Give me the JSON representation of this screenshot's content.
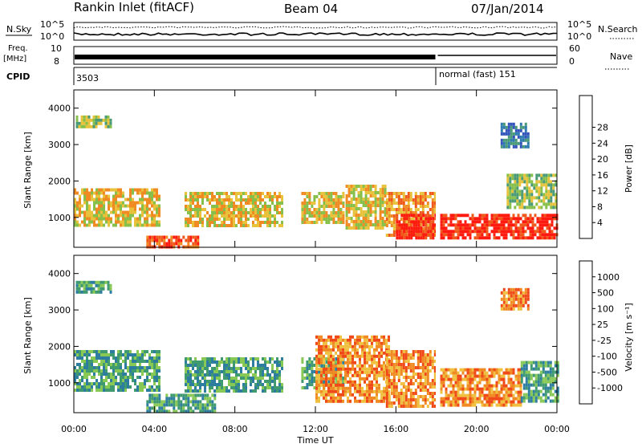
{
  "header": {
    "station": "Rankin Inlet (fitACF)",
    "beam": "Beam 04",
    "date": "07/Jan/2014"
  },
  "params": {
    "nsky_label": "N.Sky",
    "nsearch_label": "N.Search",
    "log_ticks": [
      "10^5",
      "10^0"
    ],
    "freq_label": "Freq.",
    "freq_unit": "[MHz]",
    "freq_ticks": [
      "10",
      "8"
    ],
    "nave_label": "Nave",
    "nave_ticks": [
      "60",
      "0"
    ],
    "cpid_label": "CPID",
    "cpid_segments": [
      "3503",
      "normal (fast) 151"
    ]
  },
  "chart_data": [
    {
      "type": "heatmap",
      "title": "Power",
      "ylabel": "Slant Range [km]",
      "yticks": [
        1000,
        2000,
        3000,
        4000
      ],
      "ylim": [
        180,
        4500
      ],
      "xticks": [
        "00:00",
        "04:00",
        "08:00",
        "12:00",
        "16:00",
        "20:00",
        "00:00"
      ],
      "xlim_hours": [
        0,
        24
      ],
      "colorbar": {
        "label": "Power [dB]",
        "ticks": [
          "4",
          "8",
          "12",
          "16",
          "20",
          "24",
          "28"
        ],
        "colors": [
          "#1b1bff",
          "#3355bb",
          "#2e7bb0",
          "#4a9a78",
          "#86c04a",
          "#e8c23a",
          "#f08a23",
          "#ef5a1c",
          "#ff1a10"
        ]
      },
      "regions": [
        {
          "x": [
            0.1,
            1.8
          ],
          "y": [
            3500,
            3800
          ],
          "level": 4
        },
        {
          "x": [
            0.0,
            4.2
          ],
          "y": [
            800,
            1800
          ],
          "level": 5
        },
        {
          "x": [
            3.6,
            6.2
          ],
          "y": [
            200,
            500
          ],
          "level": 7
        },
        {
          "x": [
            5.5,
            10.4
          ],
          "y": [
            800,
            1700
          ],
          "level": 5
        },
        {
          "x": [
            11.3,
            13.4
          ],
          "y": [
            900,
            1700
          ],
          "level": 5
        },
        {
          "x": [
            13.5,
            15.5
          ],
          "y": [
            700,
            1900
          ],
          "level": 5
        },
        {
          "x": [
            15.5,
            18.0
          ],
          "y": [
            500,
            1700
          ],
          "level": 6
        },
        {
          "x": [
            16.0,
            18.0
          ],
          "y": [
            400,
            1100
          ],
          "level": 8
        },
        {
          "x": [
            18.2,
            24.0
          ],
          "y": [
            400,
            1100
          ],
          "level": 8
        },
        {
          "x": [
            21.5,
            24.0
          ],
          "y": [
            1300,
            2200
          ],
          "level": 4
        },
        {
          "x": [
            21.2,
            22.6
          ],
          "y": [
            2900,
            3600
          ],
          "level": 2
        }
      ]
    },
    {
      "type": "heatmap",
      "title": "Velocity",
      "ylabel": "Slant Range [km]",
      "yticks": [
        1000,
        2000,
        3000,
        4000
      ],
      "ylim": [
        180,
        4500
      ],
      "xticks": [
        "00:00",
        "04:00",
        "08:00",
        "12:00",
        "16:00",
        "20:00",
        "00:00"
      ],
      "xlabel": "Time UT",
      "xlim_hours": [
        0,
        24
      ],
      "colorbar": {
        "label": "Velocity [m s⁻¹]",
        "ticks": [
          "1000",
          "500",
          "100",
          "25",
          "-25",
          "-100",
          "-500",
          "-1000"
        ],
        "colors": [
          "#1d3fa8",
          "#2d7da0",
          "#3f9a70",
          "#88c855",
          "#c8c8c0",
          "#f0c040",
          "#f08a23",
          "#ef4a18",
          "#e60d0d"
        ]
      },
      "regions": [
        {
          "x": [
            0.1,
            1.8
          ],
          "y": [
            3500,
            3800
          ],
          "level": 2
        },
        {
          "x": [
            0.0,
            4.2
          ],
          "y": [
            800,
            1900
          ],
          "level": 2
        },
        {
          "x": [
            3.6,
            7.0
          ],
          "y": [
            200,
            700
          ],
          "level": 2
        },
        {
          "x": [
            5.5,
            10.4
          ],
          "y": [
            800,
            1700
          ],
          "level": 2
        },
        {
          "x": [
            11.3,
            13.4
          ],
          "y": [
            900,
            1700
          ],
          "level": 2
        },
        {
          "x": [
            12.0,
            15.6
          ],
          "y": [
            500,
            2300
          ],
          "level": 6
        },
        {
          "x": [
            15.5,
            18.0
          ],
          "y": [
            400,
            1900
          ],
          "level": 6
        },
        {
          "x": [
            18.2,
            22.2
          ],
          "y": [
            400,
            1400
          ],
          "level": 6
        },
        {
          "x": [
            22.2,
            24.0
          ],
          "y": [
            500,
            1600
          ],
          "level": 2
        },
        {
          "x": [
            21.2,
            22.6
          ],
          "y": [
            3000,
            3600
          ],
          "level": 6
        }
      ]
    }
  ]
}
